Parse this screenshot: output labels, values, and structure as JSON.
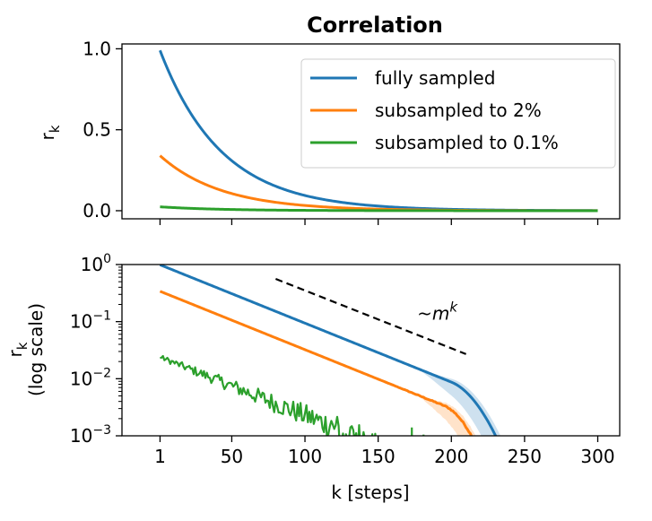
{
  "chart_data": [
    {
      "type": "line",
      "title": "Correlation",
      "xlabel": "",
      "ylabel": "r",
      "ylabel_sub": "k",
      "xlim": [
        -25,
        315
      ],
      "ylim": [
        -0.05,
        1.03
      ],
      "yticks": [
        0.0,
        0.5,
        1.0
      ],
      "ytick_labels": [
        "0.0",
        "0.5",
        "1.0"
      ],
      "legend": {
        "location": "top-right",
        "entries": [
          "fully sampled",
          "subsampled to 2%",
          "subsampled to 0.1%"
        ]
      },
      "series": [
        {
          "name": "fully sampled",
          "color": "#1f77b4",
          "start_value": 0.99,
          "decay_per_step": 0.9765
        },
        {
          "name": "subsampled to 2%",
          "color": "#ff7f0e",
          "start_value": 0.34,
          "decay_per_step": 0.9765
        },
        {
          "name": "subsampled to 0.1%",
          "color": "#2ca02c",
          "start_value": 0.024,
          "decay_per_step": 0.9765
        }
      ]
    },
    {
      "type": "line",
      "xlabel": "k [steps]",
      "ylabel_line1": "r",
      "ylabel_sub": "k",
      "ylabel_line2": "(log scale)",
      "yscale": "log",
      "xlim": [
        -25,
        315
      ],
      "ylim": [
        0.001,
        1.0
      ],
      "xticks": [
        1,
        50,
        100,
        150,
        200,
        250,
        300
      ],
      "xtick_labels": [
        "1",
        "50",
        "100",
        "150",
        "200",
        "250",
        "300"
      ],
      "ytick_bases": [
        "10",
        "10",
        "10",
        "10"
      ],
      "ytick_exponents": [
        "0",
        "−1",
        "−2",
        "−3"
      ],
      "ytick_values": [
        1,
        0.1,
        0.01,
        0.001
      ],
      "annotation": {
        "text_prefix": "~",
        "text_base": "m",
        "text_sup": "k",
        "x": 195,
        "y": 0.14
      },
      "guide_line": {
        "x0": 80,
        "y0": 0.56,
        "x1": 210,
        "y1": 0.027,
        "style": "dashed",
        "color": "#000000"
      },
      "series": [
        {
          "name": "fully sampled",
          "color": "#1f77b4",
          "start_value": 0.99,
          "decay_per_step": 0.9765,
          "bend_start_k": 200,
          "end_k": 240
        },
        {
          "name": "subsampled to 2%",
          "color": "#ff7f0e",
          "start_value": 0.34,
          "decay_per_step": 0.9765,
          "bend_start_k": 195,
          "end_k": 229
        },
        {
          "name": "subsampled to 0.1%",
          "color": "#2ca02c",
          "start_value": 0.024,
          "decay_per_step": 0.9765,
          "end_k": 175
        }
      ]
    }
  ]
}
